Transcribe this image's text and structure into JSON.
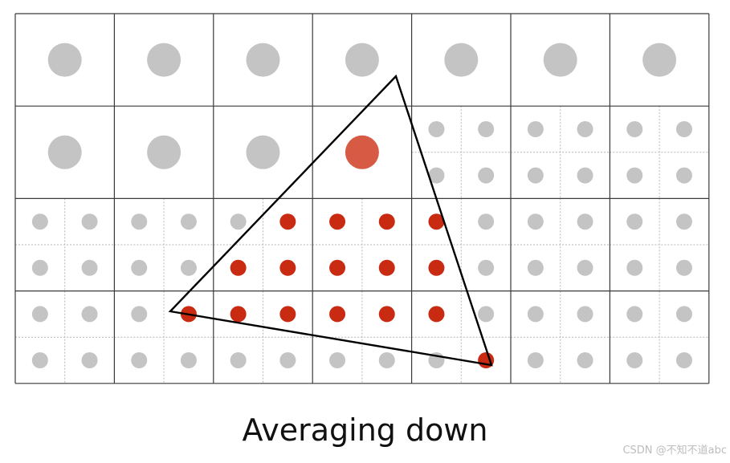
{
  "caption": "Averaging down",
  "watermark": "CSDN @不知不道abc",
  "colors": {
    "sample_gray": "#c4c4c4",
    "sample_red": "#c92a12",
    "averaged_red": "#d75a44",
    "grid_line": "#3a3a3a",
    "subgrid_line": "#b5b5b5",
    "triangle": "#000000"
  },
  "grid": {
    "columns": 7,
    "rows": 4,
    "cells": [
      [
        "big-gray",
        "big-gray",
        "big-gray",
        "big-gray",
        "big-gray",
        "big-gray",
        "big-gray"
      ],
      [
        "big-gray",
        "big-gray",
        "big-gray",
        "big-red",
        "sub",
        "sub",
        "sub"
      ],
      [
        "sub",
        "sub",
        "sub",
        "sub",
        "sub",
        "sub",
        "sub"
      ],
      [
        "sub",
        "sub",
        "sub",
        "sub",
        "sub",
        "sub",
        "sub"
      ]
    ],
    "covered_subsamples": [
      [
        4,
        5
      ],
      [
        4,
        6
      ],
      [
        4,
        7
      ],
      [
        4,
        8
      ],
      [
        5,
        4
      ],
      [
        5,
        5
      ],
      [
        5,
        6
      ],
      [
        5,
        7
      ],
      [
        5,
        8
      ],
      [
        6,
        3
      ],
      [
        6,
        4
      ],
      [
        6,
        5
      ],
      [
        6,
        6
      ],
      [
        6,
        7
      ],
      [
        6,
        8
      ],
      [
        7,
        9
      ]
    ]
  }
}
